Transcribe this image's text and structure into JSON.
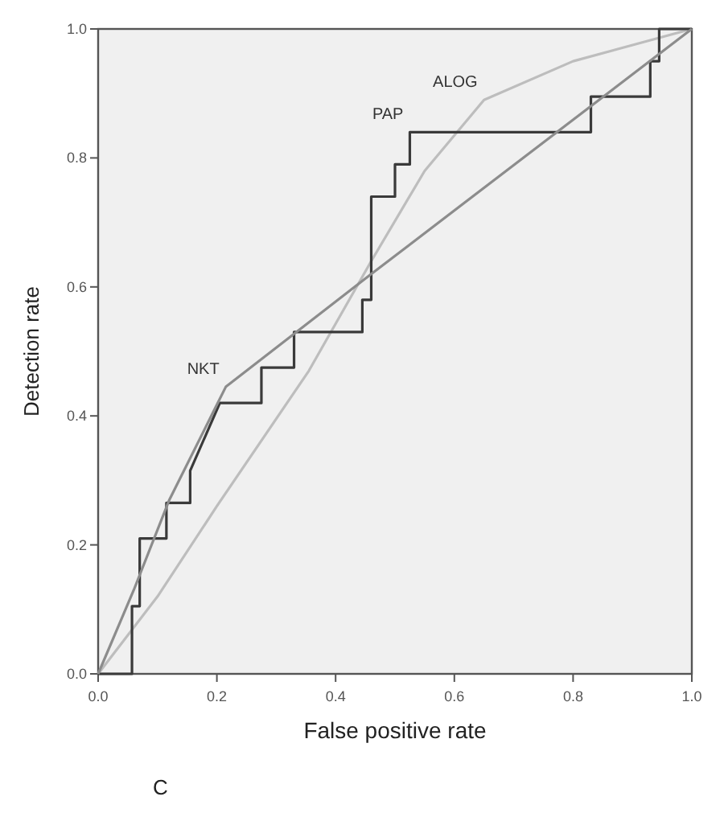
{
  "chart_data": {
    "type": "line",
    "xlabel": "False positive rate",
    "ylabel": "Detection rate",
    "xlim": [
      0,
      1
    ],
    "ylim": [
      0,
      1
    ],
    "xticks": [
      {
        "value": 0,
        "label": "0.0"
      },
      {
        "value": 0.2,
        "label": "0.2"
      },
      {
        "value": 0.4,
        "label": "0.4"
      },
      {
        "value": 0.6,
        "label": "0.6"
      },
      {
        "value": 0.8,
        "label": "0.8"
      },
      {
        "value": 1,
        "label": "1.0"
      }
    ],
    "yticks": [
      {
        "value": 0,
        "label": "0.0"
      },
      {
        "value": 0.2,
        "label": "0.2"
      },
      {
        "value": 0.4,
        "label": "0.4"
      },
      {
        "value": 0.6,
        "label": "0.6"
      },
      {
        "value": 0.8,
        "label": "0.8"
      },
      {
        "value": 1,
        "label": "1.0"
      }
    ],
    "grid": false,
    "marker": "none",
    "line_style": "solid",
    "series": [
      {
        "name": "ALOG",
        "color": "#bdbdbd",
        "x": [
          0,
          0.1,
          0.2,
          0.355,
          0.46,
          0.55,
          0.65,
          0.8,
          1
        ],
        "values": [
          0,
          0.12,
          0.26,
          0.47,
          0.64,
          0.78,
          0.89,
          0.95,
          1
        ]
      },
      {
        "name": "PAP",
        "color": "#3a3a3a",
        "x": [
          0,
          0.057,
          0.057,
          0.07,
          0.07,
          0.115,
          0.115,
          0.155,
          0.155,
          0.205,
          0.275,
          0.275,
          0.33,
          0.33,
          0.445,
          0.445,
          0.46,
          0.46,
          0.5,
          0.5,
          0.525,
          0.525,
          0.83,
          0.83,
          0.93,
          0.93,
          0.945,
          0.945,
          1
        ],
        "values": [
          0,
          0,
          0.105,
          0.105,
          0.21,
          0.21,
          0.265,
          0.265,
          0.315,
          0.42,
          0.42,
          0.475,
          0.475,
          0.53,
          0.53,
          0.58,
          0.58,
          0.74,
          0.74,
          0.79,
          0.79,
          0.84,
          0.84,
          0.895,
          0.895,
          0.95,
          0.95,
          1,
          1
        ]
      },
      {
        "name": "NKT",
        "color": "#8c8c8c",
        "x": [
          0,
          0.06,
          0.12,
          0.215,
          0.46,
          1
        ],
        "values": [
          0,
          0.13,
          0.27,
          0.445,
          0.62,
          1
        ]
      }
    ],
    "annotations": [
      "C"
    ]
  }
}
